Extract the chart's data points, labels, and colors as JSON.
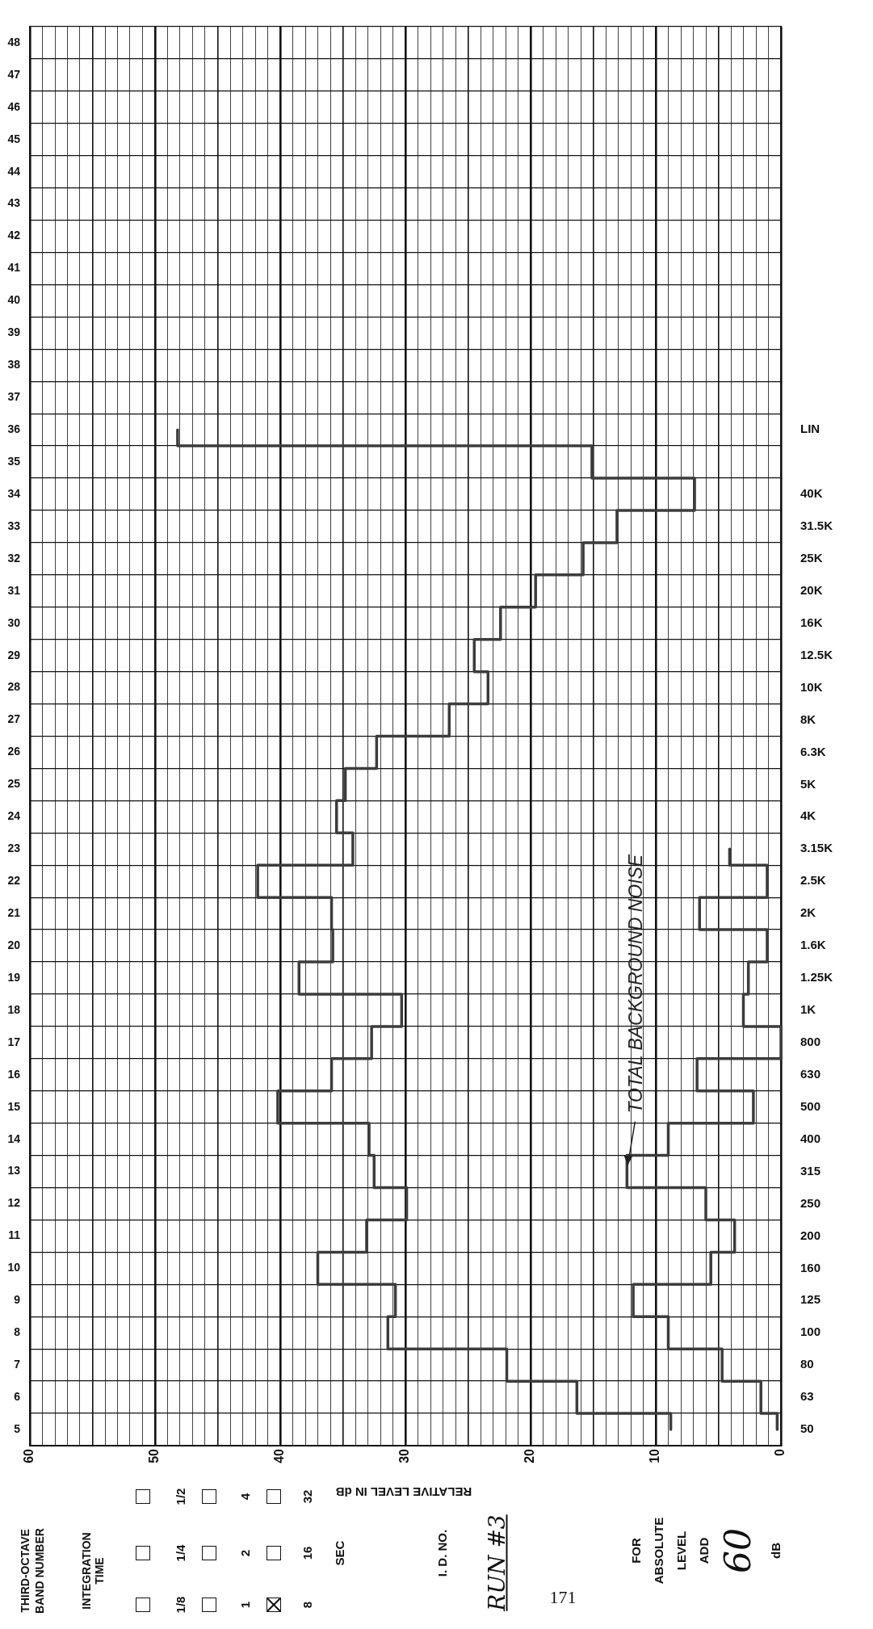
{
  "chart_data": {
    "type": "step",
    "orientation": "horizontal",
    "xlabel": "RELATIVE LEVEL IN dB",
    "categories": [
      null,
      null,
      null,
      null,
      null,
      null,
      null,
      null,
      null,
      null,
      null,
      null,
      "LIN",
      null,
      "40K",
      "31.5K",
      "25K",
      "20K",
      "16K",
      "12.5K",
      "10K",
      "8K",
      "6.3K",
      "5K",
      "4K",
      "3.15K",
      "2.5K",
      "2K",
      "1.6K",
      "1.25K",
      "1K",
      "800",
      "630",
      "500",
      "400",
      "315",
      "250",
      "200",
      "160",
      "125",
      "100",
      "80",
      "63",
      "50"
    ],
    "y2lim": [
      4.5,
      48.5
    ],
    "y2ticks": [
      5,
      6,
      7,
      8,
      9,
      10,
      11,
      12,
      13,
      14,
      15,
      16,
      17,
      18,
      19,
      20,
      21,
      22,
      23,
      24,
      25,
      26,
      27,
      28,
      29,
      30,
      31,
      32,
      33,
      34,
      35,
      36,
      37,
      38,
      39,
      40,
      41,
      42,
      43,
      44,
      45,
      46,
      47,
      48
    ],
    "xlim": [
      60,
      0
    ],
    "xticks": [
      0,
      {
        "value": 1,
        "label": null
      },
      {
        "value": 2,
        "label": null
      },
      {
        "value": 3,
        "label": null
      },
      {
        "value": 4,
        "label": null
      },
      {
        "value": 5,
        "label": null
      },
      {
        "value": 6,
        "label": null
      },
      {
        "value": 7,
        "label": null
      },
      {
        "value": 8,
        "label": null
      },
      {
        "value": 9,
        "label": null
      },
      10,
      {
        "value": 11,
        "label": null
      },
      {
        "value": 12,
        "label": null
      },
      {
        "value": 13,
        "label": null
      },
      {
        "value": 14,
        "label": null
      },
      {
        "value": 15,
        "label": null
      },
      {
        "value": 16,
        "label": null
      },
      {
        "value": 17,
        "label": null
      },
      {
        "value": 18,
        "label": null
      },
      {
        "value": 19,
        "label": null
      },
      20,
      {
        "value": 21,
        "label": null
      },
      {
        "value": 22,
        "label": null
      },
      {
        "value": 23,
        "label": null
      },
      {
        "value": 24,
        "label": null
      },
      {
        "value": 25,
        "label": null
      },
      {
        "value": 26,
        "label": null
      },
      {
        "value": 27,
        "label": null
      },
      {
        "value": 28,
        "label": null
      },
      {
        "value": 29,
        "label": null
      },
      30,
      {
        "value": 31,
        "label": null
      },
      {
        "value": 32,
        "label": null
      },
      {
        "value": 33,
        "label": null
      },
      {
        "value": 34,
        "label": null
      },
      {
        "value": 35,
        "label": null
      },
      {
        "value": 36,
        "label": null
      },
      {
        "value": 37,
        "label": null
      },
      {
        "value": 38,
        "label": null
      },
      {
        "value": 39,
        "label": null
      },
      40,
      {
        "value": 41,
        "label": null
      },
      {
        "value": 42,
        "label": null
      },
      {
        "value": 43,
        "label": null
      },
      {
        "value": 44,
        "label": null
      },
      {
        "value": 45,
        "label": null
      },
      {
        "value": 46,
        "label": null
      },
      {
        "value": 47,
        "label": null
      },
      {
        "value": 48,
        "label": null
      },
      {
        "value": 49,
        "label": null
      },
      50,
      {
        "value": 51,
        "label": null
      },
      {
        "value": 52,
        "label": null
      },
      {
        "value": 53,
        "label": null
      },
      {
        "value": 54,
        "label": null
      },
      {
        "value": 55,
        "label": null
      },
      {
        "value": 56,
        "label": null
      },
      {
        "value": 57,
        "label": null
      },
      {
        "value": 58,
        "label": null
      },
      {
        "value": 59,
        "label": null
      },
      60
    ],
    "grid": true,
    "series": [
      {
        "color": "#3c3c3c",
        "values": [
          null,
          null,
          null,
          null,
          null,
          null,
          null,
          null,
          null,
          null,
          null,
          null,
          48.2,
          15.1,
          6.9,
          13.1,
          15.8,
          19.6,
          22.4,
          24.5,
          23.4,
          26.5,
          32.3,
          34.8,
          35.5,
          34.2,
          41.8,
          35.9,
          35.8,
          38.5,
          30.3,
          32.7,
          35.9,
          40.2,
          32.9,
          32.5,
          29.9,
          33.1,
          37.0,
          30.8,
          31.4,
          21.9,
          16.3,
          8.8
        ]
      },
      {
        "color": "#3c3c3c",
        "values": [
          null,
          null,
          null,
          null,
          null,
          null,
          null,
          null,
          null,
          null,
          null,
          null,
          null,
          null,
          null,
          null,
          null,
          null,
          null,
          null,
          null,
          null,
          null,
          null,
          null,
          4.1,
          1.1,
          6.5,
          1.1,
          2.6,
          3.0,
          0.0,
          6.7,
          2.2,
          9.0,
          12.3,
          6.0,
          3.7,
          5.6,
          11.8,
          9.0,
          4.7,
          1.6,
          0.3
        ]
      }
    ],
    "annotations": [
      "INTEGRATION TIME",
      "1/8",
      "1/4",
      "1/2",
      "1",
      "2",
      "4",
      "8",
      "16",
      "32",
      "SEC",
      "I. D. NO.",
      "RUN #3",
      "FOR ABSOLUTE LEVEL ADD",
      "60",
      "dB",
      "171",
      "THIRD-OCTAVE BAND NUMBER",
      {
        "text": "TOTAL BACKGROUND NOISE",
        "y": "315",
        "x": 12.3
      }
    ]
  }
}
